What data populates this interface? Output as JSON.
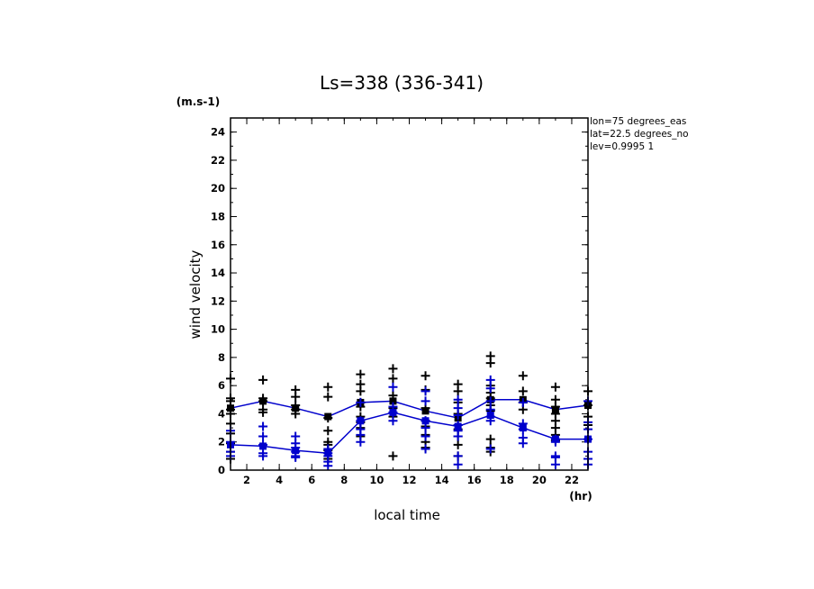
{
  "chart_data": {
    "type": "scatter",
    "title": "Ls=338 (336-341)",
    "ylabel": "wind velocity",
    "yunit": "(m.s-1)",
    "xlabel": "local time",
    "xunit": "(hr)",
    "xlim": [
      1,
      23
    ],
    "ylim": [
      0,
      25
    ],
    "xticks": [
      "2",
      "4",
      "6",
      "8",
      "10",
      "12",
      "14",
      "16",
      "18",
      "20",
      "22"
    ],
    "yticks": [
      "0",
      "2",
      "4",
      "6",
      "8",
      "10",
      "12",
      "14",
      "16",
      "18",
      "20",
      "22",
      "24"
    ],
    "info": [
      "lon=75 degrees_eas",
      "lat=22.5 degrees_no",
      "lev=0.9995 1"
    ],
    "colors": {
      "black_series": "#000000",
      "blue_series": "#0000cc"
    },
    "series": [
      {
        "color": "#000000",
        "mean_x": [
          1,
          3,
          5,
          7,
          9,
          11,
          13,
          15,
          17,
          19,
          21,
          23
        ],
        "mean_y": [
          4.4,
          4.9,
          4.4,
          3.8,
          4.8,
          4.9,
          4.2,
          3.7,
          5.0,
          5.0,
          4.3,
          4.6
        ],
        "points": [
          {
            "x": 1,
            "y": [
              0.8,
              1.3,
              1.9,
              2.6,
              3.3,
              4.0,
              4.3,
              4.9,
              5.1,
              6.5
            ]
          },
          {
            "x": 3,
            "y": [
              4.1,
              4.3,
              4.9,
              5.1,
              6.4
            ]
          },
          {
            "x": 5,
            "y": [
              4.0,
              4.3,
              4.6,
              5.2,
              5.7
            ]
          },
          {
            "x": 7,
            "y": [
              0.8,
              1.4,
              1.8,
              2.0,
              2.8,
              3.7,
              5.2,
              5.9
            ]
          },
          {
            "x": 9,
            "y": [
              2.4,
              3.0,
              3.4,
              3.8,
              4.5,
              4.8,
              5.6,
              6.1,
              6.8
            ]
          },
          {
            "x": 11,
            "y": [
              1.0,
              3.8,
              4.4,
              5.3,
              6.5,
              7.2
            ]
          },
          {
            "x": 13,
            "y": [
              1.6,
              2.0,
              2.5,
              3.1,
              3.5,
              4.4,
              5.7,
              6.7
            ]
          },
          {
            "x": 15,
            "y": [
              1.0,
              1.8,
              2.4,
              2.9,
              3.2,
              4.0,
              4.8,
              5.6,
              6.1
            ]
          },
          {
            "x": 17,
            "y": [
              1.3,
              1.6,
              2.2,
              4.2,
              4.6,
              5.1,
              5.5,
              6.0,
              7.6,
              8.1
            ]
          },
          {
            "x": 19,
            "y": [
              4.3,
              4.8,
              5.6,
              6.7
            ]
          },
          {
            "x": 21,
            "y": [
              2.1,
              2.5,
              3.0,
              3.5,
              4.0,
              4.5,
              5.0,
              5.9
            ]
          },
          {
            "x": 23,
            "y": [
              3.2,
              3.8,
              4.6,
              5.6
            ]
          }
        ]
      },
      {
        "color": "#0000cc",
        "mean_x": [
          1,
          3,
          5,
          7,
          9,
          11,
          13,
          15,
          17,
          19,
          21,
          23
        ],
        "mean_y": [
          1.8,
          1.7,
          1.4,
          1.2,
          3.5,
          4.1,
          3.5,
          3.1,
          3.9,
          3.0,
          2.2,
          2.2
        ],
        "points": [
          {
            "x": 1,
            "y": [
              1.0,
              1.3,
              2.0,
              2.8
            ]
          },
          {
            "x": 3,
            "y": [
              1.0,
              1.2,
              1.8,
              2.4,
              3.1
            ]
          },
          {
            "x": 5,
            "y": [
              0.9,
              1.0,
              1.3,
              1.6,
              1.9,
              2.4
            ]
          },
          {
            "x": 7,
            "y": [
              0.3,
              0.6,
              1.0,
              1.2,
              1.5
            ]
          },
          {
            "x": 9,
            "y": [
              2.0,
              2.5,
              2.9,
              3.5,
              4.8
            ]
          },
          {
            "x": 11,
            "y": [
              3.5,
              4.1,
              4.5,
              5.9
            ]
          },
          {
            "x": 13,
            "y": [
              1.5,
              2.4,
              3.0,
              3.5,
              4.9,
              5.6
            ]
          },
          {
            "x": 15,
            "y": [
              0.4,
              1.0,
              2.4,
              2.8,
              3.2,
              3.9,
              4.4,
              5.0
            ]
          },
          {
            "x": 17,
            "y": [
              1.5,
              3.5,
              3.8,
              4.3,
              4.9,
              5.8,
              6.4
            ]
          },
          {
            "x": 19,
            "y": [
              1.9,
              2.3,
              2.9,
              3.3,
              4.8
            ]
          },
          {
            "x": 21,
            "y": [
              0.4,
              0.9,
              1.0,
              2.0,
              2.2
            ]
          },
          {
            "x": 23,
            "y": [
              0.4,
              0.8,
              1.3,
              2.2,
              2.9,
              3.4,
              4.9
            ]
          }
        ]
      }
    ]
  }
}
